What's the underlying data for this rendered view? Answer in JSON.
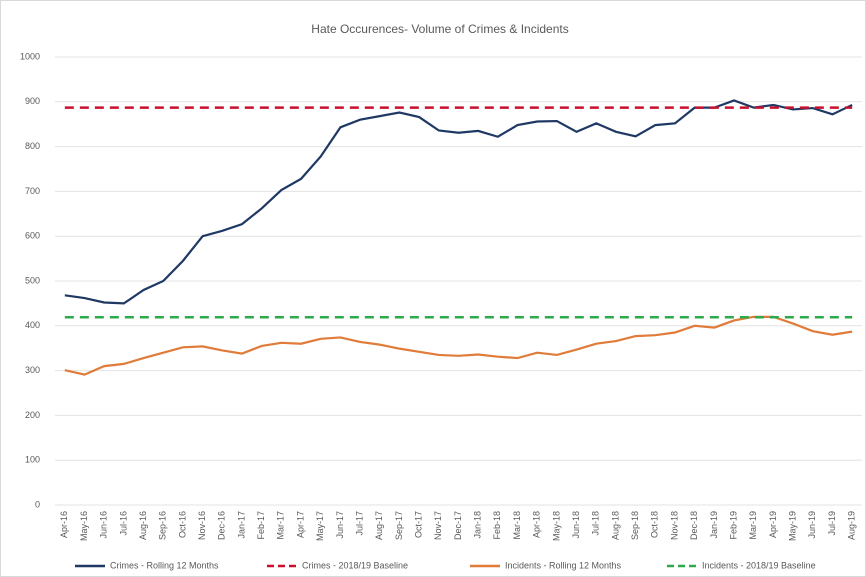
{
  "chart_data": {
    "type": "line",
    "title": "Hate Occurences- Volume of Crimes & Incidents",
    "categories": [
      "Apr-16",
      "May-16",
      "Jun-16",
      "Jul-16",
      "Aug-16",
      "Sep-16",
      "Oct-16",
      "Nov-16",
      "Dec-16",
      "Jan-17",
      "Feb-17",
      "Mar-17",
      "Apr-17",
      "May-17",
      "Jun-17",
      "Jul-17",
      "Aug-17",
      "Sep-17",
      "Oct-17",
      "Nov-17",
      "Dec-17",
      "Jan-18",
      "Feb-18",
      "Mar-18",
      "Apr-18",
      "May-18",
      "Jun-18",
      "Jul-18",
      "Aug-18",
      "Sep-18",
      "Oct-18",
      "Nov-18",
      "Dec-18",
      "Jan-19",
      "Feb-19",
      "Mar-19",
      "Apr-19",
      "May-19",
      "Jun-19",
      "Jul-19",
      "Aug-19"
    ],
    "series": [
      {
        "name": "Crimes - Rolling 12 Months",
        "color": "#1f3864",
        "dashed": false,
        "values": [
          468,
          462,
          452,
          450,
          480,
          500,
          545,
          600,
          612,
          627,
          662,
          703,
          728,
          778,
          843,
          860,
          868,
          876,
          866,
          836,
          831,
          835,
          822,
          848,
          856,
          857,
          833,
          852,
          833,
          823,
          848,
          852,
          887,
          887,
          903,
          887,
          893,
          883,
          886,
          872,
          893
        ]
      },
      {
        "name": "Crimes - 2018/19 Baseline",
        "color": "#c8102e",
        "dashed": true,
        "values": [
          887,
          887,
          887,
          887,
          887,
          887,
          887,
          887,
          887,
          887,
          887,
          887,
          887,
          887,
          887,
          887,
          887,
          887,
          887,
          887,
          887,
          887,
          887,
          887,
          887,
          887,
          887,
          887,
          887,
          887,
          887,
          887,
          887,
          887,
          887,
          887,
          887,
          887,
          887,
          887,
          887
        ]
      },
      {
        "name": "Incidents - Rolling 12 Months",
        "color": "#e07b39",
        "dashed": false,
        "values": [
          301,
          291,
          310,
          315,
          328,
          340,
          352,
          354,
          345,
          338,
          355,
          362,
          360,
          371,
          374,
          364,
          358,
          349,
          342,
          335,
          333,
          336,
          331,
          328,
          340,
          335,
          347,
          360,
          366,
          377,
          379,
          385,
          400,
          396,
          412,
          420,
          420,
          405,
          388,
          380,
          387
        ]
      },
      {
        "name": "Incidents - 2018/19 Baseline",
        "color": "#2eaa4a",
        "dashed": true,
        "values": [
          419,
          419,
          419,
          419,
          419,
          419,
          419,
          419,
          419,
          419,
          419,
          419,
          419,
          419,
          419,
          419,
          419,
          419,
          419,
          419,
          419,
          419,
          419,
          419,
          419,
          419,
          419,
          419,
          419,
          419,
          419,
          419,
          419,
          419,
          419,
          419,
          419,
          419,
          419,
          419,
          419
        ]
      }
    ],
    "ylim": [
      0,
      1000
    ],
    "yticks": [
      0,
      100,
      200,
      300,
      400,
      500,
      600,
      700,
      800,
      900,
      1000
    ],
    "grid": true
  }
}
